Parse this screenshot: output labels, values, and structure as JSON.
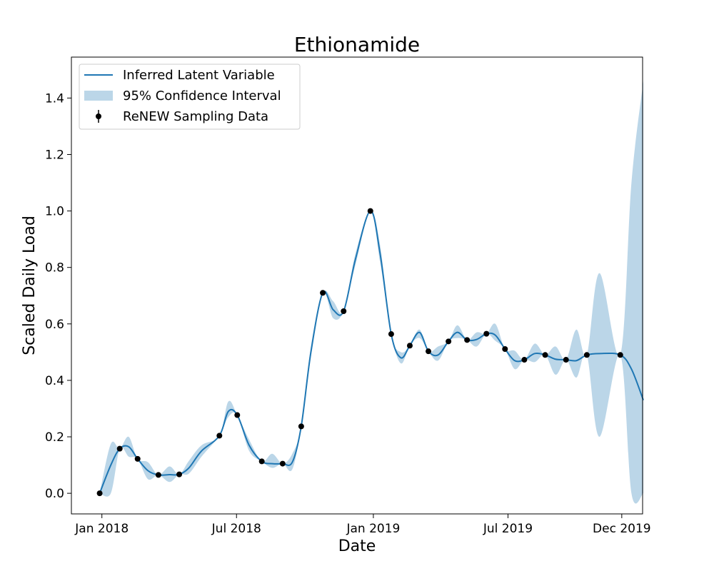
{
  "chart_data": {
    "type": "line",
    "title": "Ethionamide",
    "xlabel": "Date",
    "ylabel": "Scaled Daily Load",
    "x_ticks": [
      "Jan 2018",
      "Jul 2018",
      "Jan 2019",
      "Jul 2019",
      "Dec 2019"
    ],
    "x_tick_dates": [
      "2018-01-01",
      "2018-07-01",
      "2019-01-01",
      "2019-07-01",
      "2019-12-01"
    ],
    "xlim": [
      "2017-11-21",
      "2019-12-29"
    ],
    "y_ticks": [
      "0.0",
      "0.2",
      "0.4",
      "0.6",
      "0.8",
      "1.0",
      "1.2",
      "1.4"
    ],
    "ylim": [
      -0.073,
      1.545
    ],
    "grid": false,
    "legend": {
      "position": "top-left",
      "entries": [
        "Inferred Latent Variable",
        "95% Confidence Interval",
        "ReNEW Sampling Data"
      ]
    },
    "colors": {
      "line": "#1f77b4",
      "band": "#1f77b4",
      "band_opacity": 0.3,
      "points": "#000000"
    },
    "series": [
      {
        "name": "ReNEW Sampling Data",
        "kind": "points",
        "x": [
          "2017-12-29",
          "2018-01-25",
          "2018-02-18",
          "2018-03-18",
          "2018-04-15",
          "2018-06-08",
          "2018-07-02",
          "2018-08-04",
          "2018-09-01",
          "2018-09-26",
          "2018-10-25",
          "2018-11-22",
          "2018-12-28",
          "2019-01-25",
          "2019-02-19",
          "2019-03-16",
          "2019-04-12",
          "2019-05-07",
          "2019-06-02",
          "2019-06-27",
          "2019-07-23",
          "2019-08-20",
          "2019-09-17",
          "2019-10-15",
          "2019-11-29"
        ],
        "y": [
          0.0,
          0.158,
          0.122,
          0.065,
          0.067,
          0.204,
          0.277,
          0.113,
          0.105,
          0.237,
          0.71,
          0.645,
          1.0,
          0.564,
          0.523,
          0.503,
          0.538,
          0.543,
          0.565,
          0.511,
          0.473,
          0.49,
          0.473,
          0.49,
          0.49
        ]
      },
      {
        "name": "Inferred Latent Variable",
        "kind": "line",
        "x": [
          "2017-12-29",
          "2018-01-13",
          "2018-01-25",
          "2018-02-06",
          "2018-02-18",
          "2018-03-04",
          "2018-03-18",
          "2018-04-02",
          "2018-04-15",
          "2018-04-28",
          "2018-05-15",
          "2018-06-08",
          "2018-06-20",
          "2018-07-02",
          "2018-07-18",
          "2018-08-04",
          "2018-08-18",
          "2018-09-01",
          "2018-09-14",
          "2018-09-26",
          "2018-10-09",
          "2018-10-25",
          "2018-11-08",
          "2018-11-22",
          "2018-12-08",
          "2018-12-28",
          "2019-01-10",
          "2019-01-25",
          "2019-02-07",
          "2019-02-19",
          "2019-03-04",
          "2019-03-16",
          "2019-03-29",
          "2019-04-12",
          "2019-04-24",
          "2019-05-07",
          "2019-05-20",
          "2019-06-02",
          "2019-06-14",
          "2019-06-27",
          "2019-07-10",
          "2019-07-23",
          "2019-08-06",
          "2019-08-20",
          "2019-09-03",
          "2019-09-17",
          "2019-10-01",
          "2019-10-15",
          "2019-11-01",
          "2019-11-29",
          "2019-12-14",
          "2019-12-30"
        ],
        "y": [
          0.0,
          0.1,
          0.158,
          0.165,
          0.122,
          0.08,
          0.065,
          0.066,
          0.067,
          0.09,
          0.15,
          0.204,
          0.29,
          0.277,
          0.17,
          0.113,
          0.105,
          0.105,
          0.11,
          0.237,
          0.5,
          0.71,
          0.65,
          0.645,
          0.83,
          1.0,
          0.85,
          0.564,
          0.48,
          0.523,
          0.57,
          0.503,
          0.49,
          0.538,
          0.57,
          0.543,
          0.545,
          0.565,
          0.56,
          0.511,
          0.47,
          0.473,
          0.495,
          0.49,
          0.475,
          0.473,
          0.47,
          0.49,
          0.495,
          0.49,
          0.44,
          0.33
        ]
      },
      {
        "name": "95% Confidence Interval",
        "kind": "band",
        "x": [
          "2017-12-29",
          "2018-01-13",
          "2018-01-25",
          "2018-02-06",
          "2018-02-18",
          "2018-03-04",
          "2018-03-18",
          "2018-04-02",
          "2018-04-15",
          "2018-04-28",
          "2018-05-15",
          "2018-06-08",
          "2018-06-20",
          "2018-07-02",
          "2018-07-18",
          "2018-08-04",
          "2018-08-18",
          "2018-09-01",
          "2018-09-14",
          "2018-09-26",
          "2018-10-09",
          "2018-10-25",
          "2018-11-08",
          "2018-11-22",
          "2018-12-08",
          "2018-12-28",
          "2019-01-10",
          "2019-01-25",
          "2019-02-07",
          "2019-02-19",
          "2019-03-04",
          "2019-03-16",
          "2019-03-29",
          "2019-04-12",
          "2019-04-24",
          "2019-05-07",
          "2019-05-20",
          "2019-06-02",
          "2019-06-14",
          "2019-06-27",
          "2019-07-10",
          "2019-07-23",
          "2019-08-06",
          "2019-08-20",
          "2019-09-03",
          "2019-09-17",
          "2019-10-01",
          "2019-10-15",
          "2019-11-01",
          "2019-11-29",
          "2019-12-14",
          "2019-12-30"
        ],
        "lower": [
          0.0,
          0.0,
          0.158,
          0.13,
          0.122,
          0.05,
          0.065,
          0.04,
          0.067,
          0.07,
          0.13,
          0.204,
          0.27,
          0.277,
          0.15,
          0.113,
          0.09,
          0.105,
          0.085,
          0.237,
          0.48,
          0.71,
          0.62,
          0.645,
          0.81,
          1.0,
          0.82,
          0.564,
          0.46,
          0.523,
          0.55,
          0.503,
          0.47,
          0.538,
          0.55,
          0.543,
          0.52,
          0.565,
          0.54,
          0.511,
          0.44,
          0.473,
          0.465,
          0.49,
          0.42,
          0.473,
          0.41,
          0.49,
          0.2,
          0.49,
          0.0,
          0.0
        ],
        "upper": [
          0.0,
          0.175,
          0.158,
          0.2,
          0.122,
          0.11,
          0.065,
          0.095,
          0.067,
          0.115,
          0.17,
          0.204,
          0.325,
          0.277,
          0.19,
          0.113,
          0.14,
          0.105,
          0.14,
          0.237,
          0.52,
          0.71,
          0.68,
          0.645,
          0.85,
          1.0,
          0.88,
          0.564,
          0.5,
          0.523,
          0.58,
          0.503,
          0.52,
          0.538,
          0.595,
          0.543,
          0.57,
          0.565,
          0.6,
          0.511,
          0.505,
          0.473,
          0.53,
          0.49,
          0.52,
          0.473,
          0.58,
          0.49,
          0.78,
          0.49,
          1.1,
          1.46
        ]
      }
    ]
  }
}
